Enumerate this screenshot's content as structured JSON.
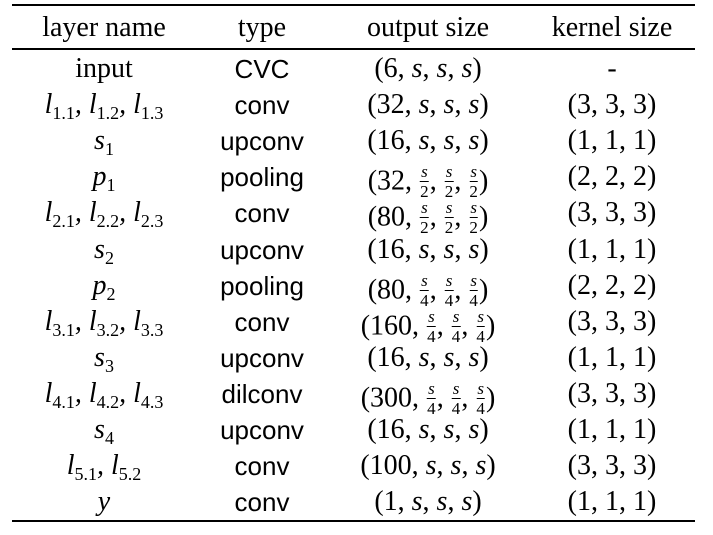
{
  "table": {
    "headers": {
      "layer_name": "layer name",
      "type": "type",
      "output_size": "output size",
      "kernel_size": "kernel size"
    },
    "rows": [
      {
        "name_text": "input",
        "name_math": false,
        "type": "CVC",
        "output": "(6, s, s, s)",
        "kernel": "-"
      },
      {
        "name_text": "l1.1, l1.2, l1.3",
        "name_math": true,
        "type": "conv",
        "output": "(32, s, s, s)",
        "kernel": "(3, 3, 3)"
      },
      {
        "name_text": "s1",
        "name_math": true,
        "type": "upconv",
        "output": "(16, s, s, s)",
        "kernel": "(1, 1, 1)"
      },
      {
        "name_text": "p1",
        "name_math": true,
        "type": "pooling",
        "output": "(32, s/2, s/2, s/2)",
        "kernel": "(2, 2, 2)"
      },
      {
        "name_text": "l2.1, l2.2, l2.3",
        "name_math": true,
        "type": "conv",
        "output": "(80, s/2, s/2, s/2)",
        "kernel": "(3, 3, 3)"
      },
      {
        "name_text": "s2",
        "name_math": true,
        "type": "upconv",
        "output": "(16, s, s, s)",
        "kernel": "(1, 1, 1)"
      },
      {
        "name_text": "p2",
        "name_math": true,
        "type": "pooling",
        "output": "(80, s/4, s/4, s/4)",
        "kernel": "(2, 2, 2)"
      },
      {
        "name_text": "l3.1, l3.2, l3.3",
        "name_math": true,
        "type": "conv",
        "output": "(160, s/4, s/4, s/4)",
        "kernel": "(3, 3, 3)"
      },
      {
        "name_text": "s3",
        "name_math": true,
        "type": "upconv",
        "output": "(16, s, s, s)",
        "kernel": "(1, 1, 1)"
      },
      {
        "name_text": "l4.1, l4.2, l4.3",
        "name_math": true,
        "type": "dilconv",
        "output": "(300, s/4, s/4, s/4)",
        "kernel": "(3, 3, 3)"
      },
      {
        "name_text": "s4",
        "name_math": true,
        "type": "upconv",
        "output": "(16, s, s, s)",
        "kernel": "(1, 1, 1)"
      },
      {
        "name_text": "l5.1, l5.2",
        "name_math": true,
        "type": "conv",
        "output": "(100, s, s, s)",
        "kernel": "(3, 3, 3)"
      },
      {
        "name_text": "y",
        "name_math": true,
        "type": "conv",
        "output": "(1, s, s, s)",
        "kernel": "(1, 1, 1)"
      }
    ]
  }
}
